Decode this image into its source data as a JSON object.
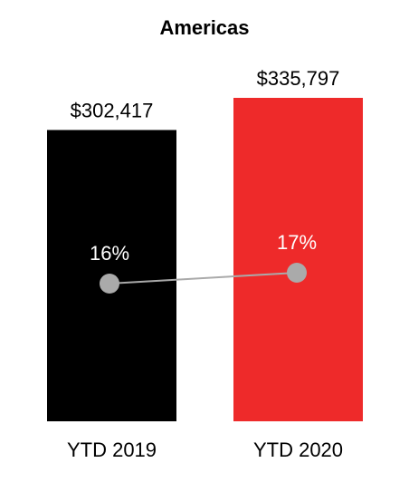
{
  "chart_data": {
    "type": "bar",
    "title": "Americas",
    "categories": [
      "YTD 2019",
      "YTD 2020"
    ],
    "values": [
      302417,
      335797
    ],
    "value_labels": [
      "$302,417",
      "$335,797"
    ],
    "colors": [
      "#000000",
      "#ee2a2a"
    ],
    "line": {
      "type": "line",
      "values": [
        16,
        17
      ],
      "value_labels": [
        "16%",
        "17%"
      ],
      "color": "#aaaaaa"
    }
  }
}
